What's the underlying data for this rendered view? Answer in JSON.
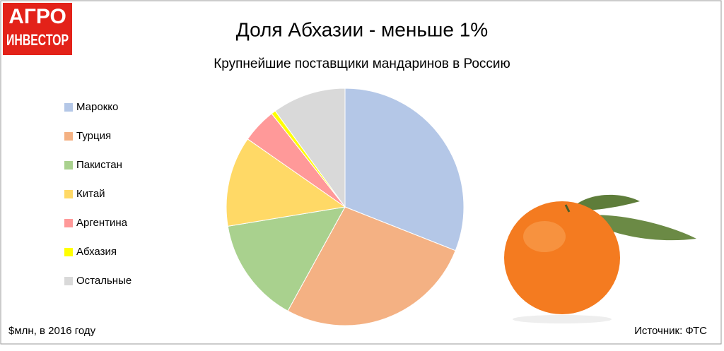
{
  "logo": [
    "АГРО",
    "ИНВЕСТОР"
  ],
  "chart_data": {
    "type": "pie",
    "title": "Доля Абхазии - меньше 1%",
    "subtitle": "Крупнейшие поставщики мандаринов в Россию",
    "categories": [
      "Марокко",
      "Турция",
      "Пакистан",
      "Китай",
      "Аргентина",
      "Абхазия",
      "Остальные"
    ],
    "values": [
      31,
      27,
      14.4,
      12.3,
      4.7,
      0.6,
      10
    ],
    "colors": [
      "#b4c7e7",
      "#f4b183",
      "#a9d18e",
      "#ffd966",
      "#ff9999",
      "#ffff00",
      "#d9d9d9"
    ],
    "legend": "left",
    "note": "$млн, в 2016 году",
    "source": "Источник: ФТС"
  }
}
